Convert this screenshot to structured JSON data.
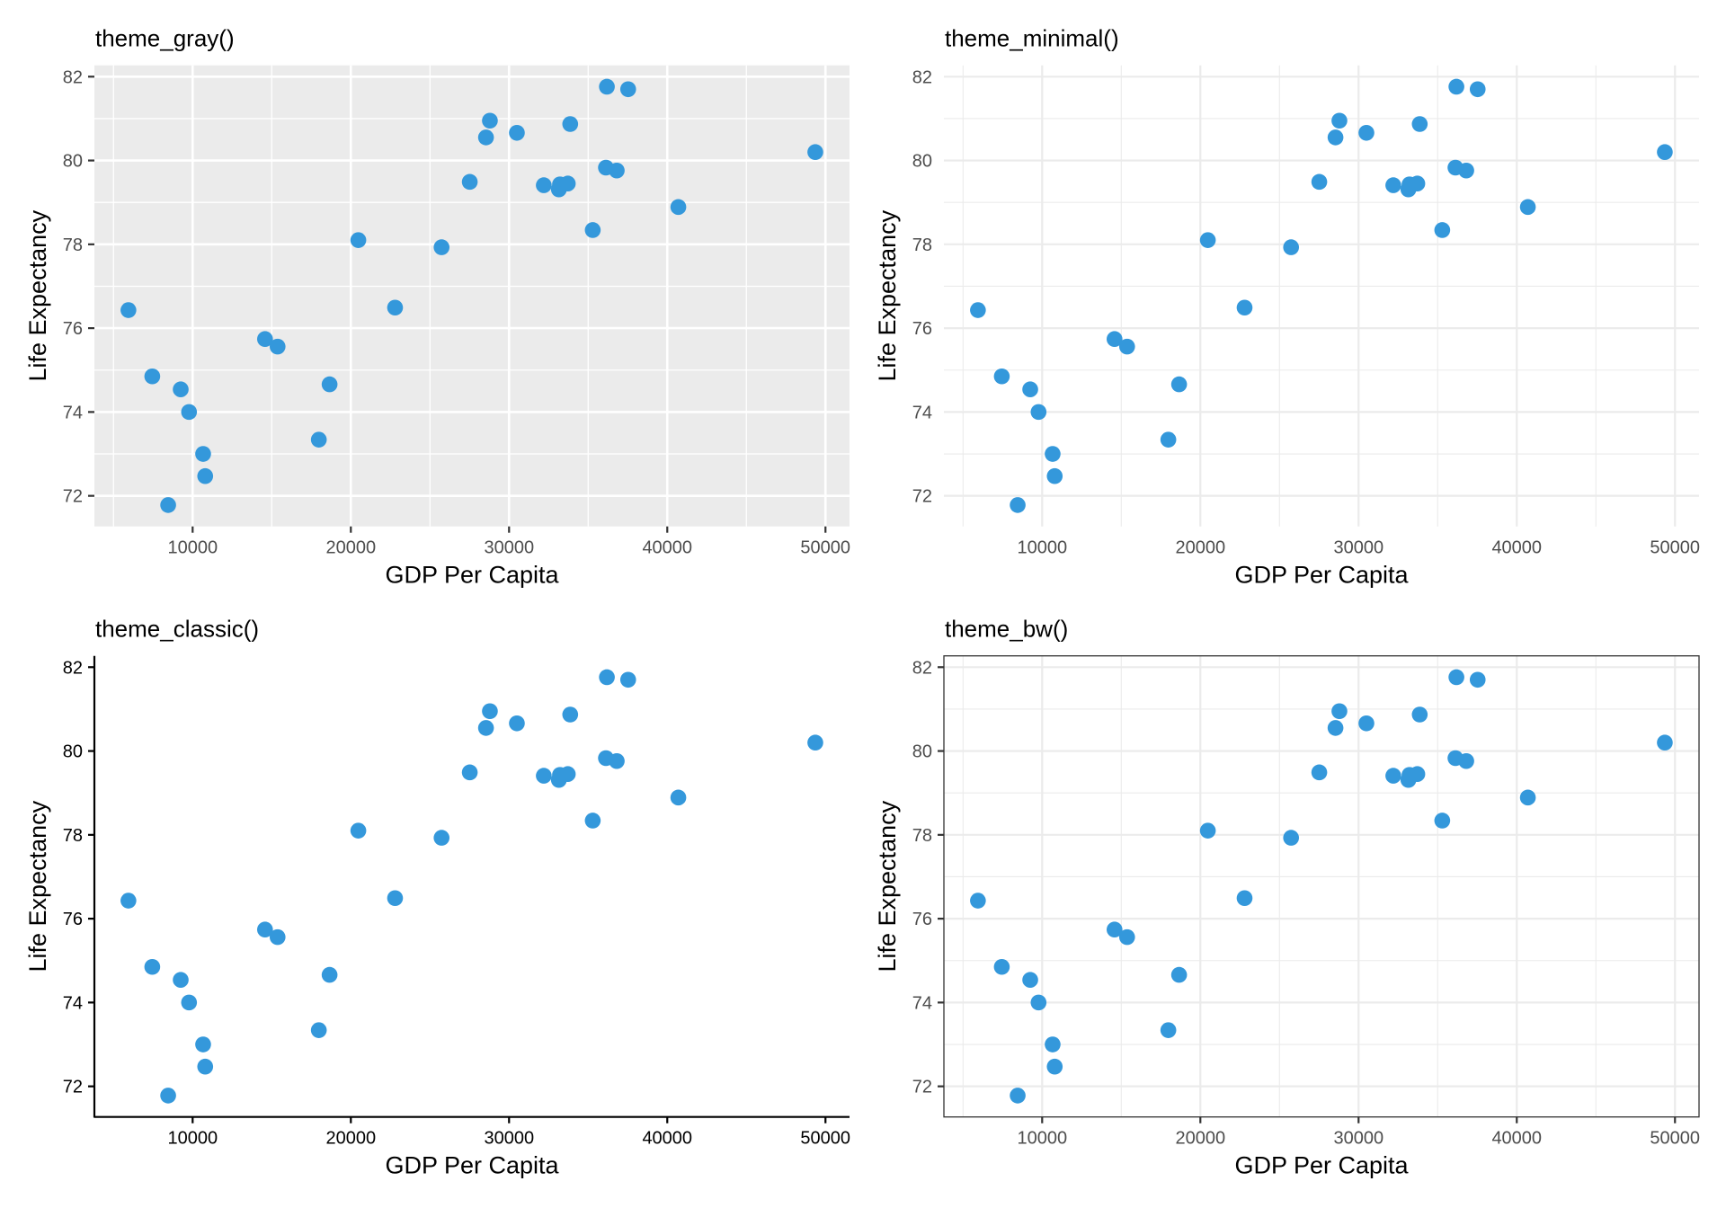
{
  "colors": {
    "point": "#3498DB",
    "gray_panel_bg": "#EBEBEB",
    "light_grid": "#EBEBEB",
    "border": "#333333",
    "axis_text": "#4D4D4D"
  },
  "chart_data": [
    {
      "type": "scatter",
      "theme": "gray",
      "title": "theme_gray()",
      "xlabel": "GDP Per Capita",
      "ylabel": "Life Expectancy",
      "xticks": [
        10000,
        20000,
        30000,
        40000,
        50000
      ],
      "yticks": [
        72,
        74,
        76,
        78,
        80,
        82
      ],
      "xlim": [
        3790,
        51520
      ],
      "ylim": [
        71.27,
        82.27
      ],
      "grid": true
    },
    {
      "type": "scatter",
      "theme": "minimal",
      "title": "theme_minimal()",
      "xlabel": "GDP Per Capita",
      "ylabel": "Life Expectancy",
      "xticks": [
        10000,
        20000,
        30000,
        40000,
        50000
      ],
      "yticks": [
        72,
        74,
        76,
        78,
        80,
        82
      ],
      "xlim": [
        3790,
        51520
      ],
      "ylim": [
        71.27,
        82.27
      ],
      "grid": true
    },
    {
      "type": "scatter",
      "theme": "classic",
      "title": "theme_classic()",
      "xlabel": "GDP Per Capita",
      "ylabel": "Life Expectancy",
      "xticks": [
        10000,
        20000,
        30000,
        40000,
        50000
      ],
      "yticks": [
        72,
        74,
        76,
        78,
        80,
        82
      ],
      "xlim": [
        3790,
        51520
      ],
      "ylim": [
        71.27,
        82.27
      ],
      "grid": false
    },
    {
      "type": "scatter",
      "theme": "bw",
      "title": "theme_bw()",
      "xlabel": "GDP Per Capita",
      "ylabel": "Life Expectancy",
      "xticks": [
        10000,
        20000,
        30000,
        40000,
        50000
      ],
      "yticks": [
        72,
        74,
        76,
        78,
        80,
        82
      ],
      "xlim": [
        3790,
        51520
      ],
      "ylim": [
        71.27,
        82.27
      ],
      "grid": true
    }
  ],
  "points": [
    {
      "x": 5941,
      "y": 76.43
    },
    {
      "x": 7449,
      "y": 74.85
    },
    {
      "x": 8453,
      "y": 71.78
    },
    {
      "x": 9246,
      "y": 74.54
    },
    {
      "x": 9773,
      "y": 74.0
    },
    {
      "x": 10663,
      "y": 73.0
    },
    {
      "x": 10794,
      "y": 72.47
    },
    {
      "x": 14575,
      "y": 75.74
    },
    {
      "x": 15369,
      "y": 75.56
    },
    {
      "x": 17976,
      "y": 73.34
    },
    {
      "x": 18656,
      "y": 74.66
    },
    {
      "x": 20473,
      "y": 78.1
    },
    {
      "x": 22795,
      "y": 76.49
    },
    {
      "x": 25735,
      "y": 77.93
    },
    {
      "x": 27517,
      "y": 79.49
    },
    {
      "x": 28542,
      "y": 80.55
    },
    {
      "x": 28789,
      "y": 80.95
    },
    {
      "x": 30495,
      "y": 80.66
    },
    {
      "x": 32196,
      "y": 79.41
    },
    {
      "x": 33150,
      "y": 79.31
    },
    {
      "x": 33220,
      "y": 79.43
    },
    {
      "x": 33713,
      "y": 79.45
    },
    {
      "x": 33866,
      "y": 80.87
    },
    {
      "x": 35290,
      "y": 78.34
    },
    {
      "x": 36124,
      "y": 79.83
    },
    {
      "x": 36807,
      "y": 79.76
    },
    {
      "x": 36184,
      "y": 81.76
    },
    {
      "x": 37528,
      "y": 81.7
    },
    {
      "x": 40700,
      "y": 78.89
    },
    {
      "x": 49358,
      "y": 80.2
    }
  ]
}
